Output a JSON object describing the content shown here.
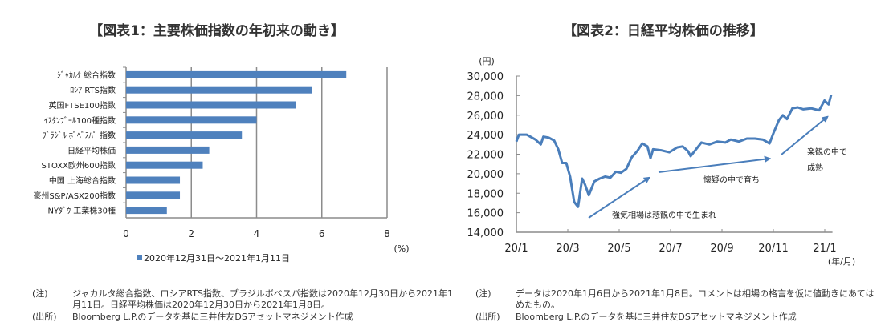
{
  "chart_data": [
    {
      "type": "bar",
      "orientation": "horizontal",
      "title": "【図表1：主要株価指数の年初来の動き】",
      "categories": [
        "ｼﾞｬｶﾙﾀ 総合指数",
        "ﾛｼｱ RTS指数",
        "英国FTSE100指数",
        "ｲｽﾀﾝﾌﾞｰﾙ100種指数",
        "ﾌﾞﾗｼﾞﾙ ﾎﾞﾍﾞｽﾊﾟ 指数",
        "日経平均株価",
        "STOXX欧州600指数",
        "中国 上海総合指数",
        "豪州S&P/ASX200指数",
        "NYﾀﾞｳ 工業株30種"
      ],
      "series": [
        {
          "name": "2020年12月31日～2021年1月11日",
          "values": [
            6.75,
            5.7,
            5.2,
            4.0,
            3.55,
            2.55,
            2.35,
            1.65,
            1.65,
            1.25
          ]
        }
      ],
      "xlim": [
        0,
        8
      ],
      "xticks": [
        "0",
        "2",
        "4",
        "6",
        "8"
      ],
      "xlabel": "(%)",
      "grid": true,
      "legend": "bottom",
      "color": "#4f81bd"
    },
    {
      "type": "line",
      "title": "【図表2：日経平均株価の推移】",
      "ylabel": "(円)",
      "xlabel": "(年/月)",
      "ylim": [
        14000,
        30000
      ],
      "yticks": [
        "14,000",
        "16,000",
        "18,000",
        "20,000",
        "22,000",
        "24,000",
        "26,000",
        "28,000",
        "30,000"
      ],
      "xticks": [
        "20/1",
        "20/3",
        "20/5",
        "20/7",
        "20/9",
        "20/11",
        "21/1"
      ],
      "xlim_months": [
        0,
        12.3
      ],
      "grid": false,
      "color": "#4a7ebb",
      "series": [
        {
          "name": "日経平均株価",
          "x": [
            0,
            0.1,
            0.4,
            0.74,
            0.95,
            1.05,
            1.26,
            1.47,
            1.63,
            1.78,
            1.94,
            2.09,
            2.25,
            2.4,
            2.56,
            2.67,
            2.82,
            3.03,
            3.24,
            3.45,
            3.66,
            3.87,
            4.07,
            4.28,
            4.49,
            4.7,
            4.9,
            5.1,
            5.22,
            5.32,
            5.63,
            5.95,
            6.26,
            6.47,
            6.68,
            6.78,
            6.99,
            7.2,
            7.51,
            7.82,
            8.13,
            8.34,
            8.66,
            8.97,
            9.28,
            9.59,
            9.85,
            10.01,
            10.22,
            10.37,
            10.53,
            10.74,
            10.95,
            11.16,
            11.47,
            11.78,
            11.99,
            12.15,
            12.25
          ],
          "y": [
            23300,
            24000,
            24000,
            23500,
            23000,
            23800,
            23700,
            23400,
            22500,
            21100,
            21100,
            19700,
            17100,
            16600,
            19500,
            18900,
            17800,
            19200,
            19500,
            19700,
            19600,
            20200,
            20100,
            20500,
            21700,
            22300,
            23100,
            22800,
            21600,
            22500,
            22400,
            22200,
            22700,
            22800,
            22300,
            21800,
            22500,
            23200,
            23000,
            23300,
            23200,
            23500,
            23300,
            23600,
            23600,
            23500,
            23100,
            24200,
            25500,
            26000,
            25600,
            26700,
            26800,
            26600,
            26700,
            26500,
            27500,
            27100,
            28100
          ]
        }
      ],
      "annotations": [
        "強気相場は悲観の中で生まれ",
        "懐疑の中で育ち",
        "楽観の中で",
        "成熟"
      ]
    }
  ],
  "notes": {
    "left": {
      "note_label": "(注)",
      "note": "ジャカルタ総合指数、ロシアRTS指数、ブラジルボベスパ指数は2020年12月30日から2021年1月11日。日経平均株価は2020年12月30日から2021年1月8日。",
      "source_label": "(出所)",
      "source": "Bloomberg L.P.のデータを基に三井住友DSアセットマネジメント作成"
    },
    "right": {
      "note_label": "(注)",
      "note": "データは2020年1月6日から2021年1月8日。コメントは相場の格言を仮に値動きにあてはめたもの。",
      "source_label": "(出所)",
      "source": "Bloomberg L.P.のデータを基に三井住友DSアセットマネジメント作成"
    }
  }
}
